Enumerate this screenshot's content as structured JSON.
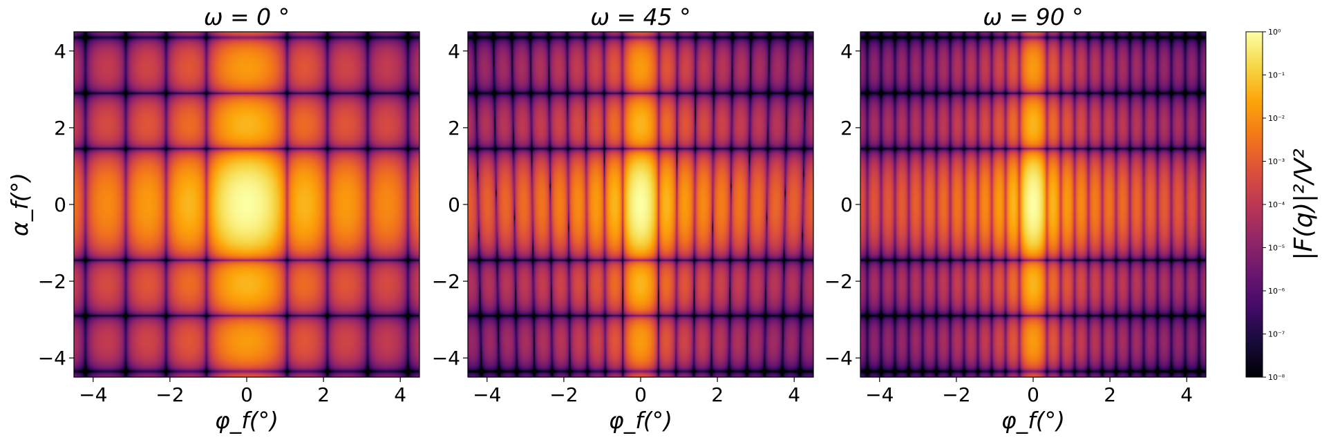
{
  "chart_data": {
    "type": "heatmap",
    "colormap": "inferno",
    "panels": [
      {
        "title": "ω = 0 °",
        "omega_deg": 0,
        "xlabel": "φ_f(°)",
        "ylabel": "α_f(°)",
        "xlim": [
          -4.5,
          4.5
        ],
        "ylim": [
          -4.5,
          4.5
        ],
        "x_ticks": [
          -4,
          -2,
          0,
          2,
          4
        ],
        "y_ticks": [
          -4,
          -2,
          0,
          2,
          4
        ],
        "x_ticklabels": [
          "−4",
          "−2",
          "0",
          "2",
          "4"
        ],
        "y_ticklabels": [
          "−4",
          "−2",
          "0",
          "2",
          "4"
        ],
        "x_fringe_period_deg": 1.05,
        "y_fringe_minima_deg": [
          -4.35,
          -2.9,
          -1.45,
          1.45,
          2.9,
          4.35
        ],
        "central_peak_halfwidth_deg": 1.0
      },
      {
        "title": "ω = 45 °",
        "omega_deg": 45,
        "xlabel": "φ_f(°)",
        "ylabel": "",
        "xlim": [
          -4.5,
          4.5
        ],
        "ylim": [
          -4.5,
          4.5
        ],
        "x_ticks": [
          -4,
          -2,
          0,
          2,
          4
        ],
        "y_ticks": [
          -4,
          -2,
          0,
          2,
          4
        ],
        "x_ticklabels": [
          "−4",
          "−2",
          "0",
          "2",
          "4"
        ],
        "y_ticklabels": [
          "−4",
          "−2",
          "0",
          "2",
          "4"
        ],
        "x_fringe_period_deg": 0.47,
        "y_fringe_minima_deg": [
          -4.35,
          -2.9,
          -1.45,
          1.45,
          2.9,
          4.35
        ],
        "central_peak_halfwidth_deg": 0.47
      },
      {
        "title": "ω = 90 °",
        "omega_deg": 90,
        "xlabel": "φ_f(°)",
        "ylabel": "",
        "xlim": [
          -4.5,
          4.5
        ],
        "ylim": [
          -4.5,
          4.5
        ],
        "x_ticks": [
          -4,
          -2,
          0,
          2,
          4
        ],
        "y_ticks": [
          -4,
          -2,
          0,
          2,
          4
        ],
        "x_ticklabels": [
          "−4",
          "−2",
          "0",
          "2",
          "4"
        ],
        "y_ticklabels": [
          "−4",
          "−2",
          "0",
          "2",
          "4"
        ],
        "x_fringe_period_deg": 0.36,
        "y_fringe_minima_deg": [
          -4.35,
          -2.9,
          -1.45,
          1.45,
          2.9,
          4.35
        ],
        "central_peak_halfwidth_deg": 0.36
      }
    ],
    "colorbar": {
      "label": "|F(q)|²/V²",
      "scale": "log",
      "range": [
        1e-08,
        1
      ],
      "ticks": [
        1e-08,
        1e-07,
        1e-06,
        1e-05,
        0.0001,
        0.001,
        0.01,
        0.1,
        1
      ],
      "tick_labels": [
        "10⁻⁸",
        "10⁻⁷",
        "10⁻⁶",
        "10⁻⁵",
        "10⁻⁴",
        "10⁻³",
        "10⁻²",
        "10⁻¹",
        "10⁰"
      ]
    },
    "grid": false,
    "legend": "none"
  }
}
